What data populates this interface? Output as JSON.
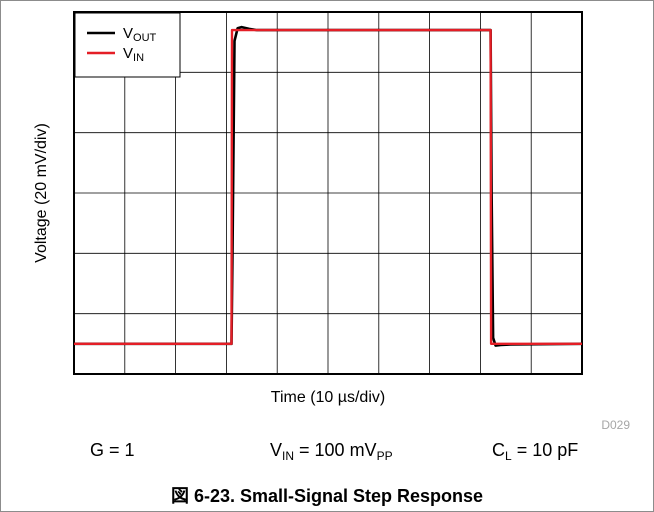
{
  "chart_data": {
    "type": "line",
    "title": "",
    "xlabel": "Time (10 µs/div)",
    "ylabel": "Voltage (20 mV/div)",
    "x_divisions": 10,
    "y_divisions": 6,
    "xlim": [
      0,
      100
    ],
    "ylim": [
      0,
      120
    ],
    "x_unit": "µs",
    "y_unit": "mV",
    "grid": true,
    "legend_position": "top-left",
    "series": [
      {
        "name_main": "V",
        "name_sub": "OUT",
        "color": "#000000",
        "x": [
          0,
          31,
          31.2,
          31.6,
          32.2,
          33,
          34.5,
          36,
          80,
          82,
          82.2,
          82.5,
          83,
          84,
          86,
          100
        ],
        "y": [
          10,
          10,
          40,
          110.4,
          114.6,
          115,
          114.4,
          114,
          114,
          114,
          60,
          12,
          9.4,
          9.6,
          9.8,
          10
        ]
      },
      {
        "name_main": "V",
        "name_sub": "IN",
        "color": "#e41e26",
        "x": [
          0,
          31,
          31.1,
          82,
          82.1,
          100
        ],
        "y": [
          10,
          10,
          114,
          114,
          10,
          10
        ]
      }
    ]
  },
  "conditions": {
    "gain": "G = 1",
    "vin_main": "V",
    "vin_sub": "IN",
    "vin_mid": " = 100 mV",
    "vin_sub2": "PP",
    "cl_main": "C",
    "cl_sub": "L",
    "cl_rest": " = 10 pF"
  },
  "figure_code": "D029",
  "caption": "図 6-23. Small-Signal Step Response"
}
